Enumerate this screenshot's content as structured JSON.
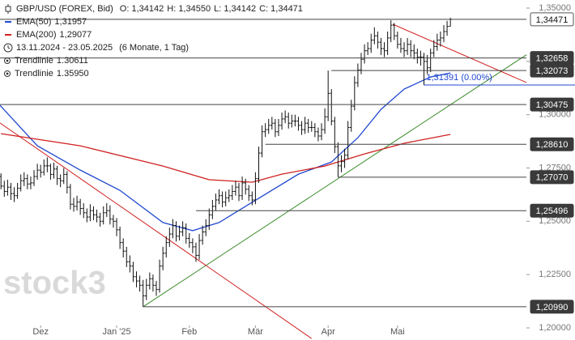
{
  "chart_data": {
    "type": "ohlc",
    "title": "GBP/USD (FOREX, Bid)",
    "quote": [
      {
        "label": "O:",
        "value": "1,34142"
      },
      {
        "label": "H:",
        "value": "1,34550"
      },
      {
        "label": "L:",
        "value": "1,34142"
      },
      {
        "label": "C:",
        "value": "1,34471"
      }
    ],
    "date_range": "13.11.2024 - 23.05.2025",
    "period": "(6 Monate, 1 Tag)",
    "watermark": "stock3",
    "color": "#111111",
    "grid": false,
    "xlim": [
      0.7,
      160
    ],
    "ylim": [
      1.2,
      1.35
    ],
    "xticks": [
      {
        "value": 13,
        "label": "Dez"
      },
      {
        "value": 36,
        "label": "Jan '25"
      },
      {
        "value": 58,
        "label": "Feb"
      },
      {
        "value": 78,
        "label": "Mär"
      },
      {
        "value": 100,
        "label": "Apr"
      },
      {
        "value": 121,
        "label": "Mai"
      }
    ],
    "yticks": [
      {
        "value": 1.35,
        "label": "1,35000"
      },
      {
        "value": 1.325,
        "label": "1,32500"
      },
      {
        "value": 1.3,
        "label": "1,30000"
      },
      {
        "value": 1.275,
        "label": "1,27500"
      },
      {
        "value": 1.25,
        "label": "1,25000"
      },
      {
        "value": 1.225,
        "label": "1,22500"
      },
      {
        "value": 1.2,
        "label": "1,20000"
      }
    ],
    "ohlc": [
      [
        1.274,
        1.2765,
        1.269,
        1.271
      ],
      [
        1.271,
        1.2725,
        1.265,
        1.2665
      ],
      [
        1.2665,
        1.269,
        1.2615,
        1.264
      ],
      [
        1.264,
        1.2695,
        1.262,
        1.266
      ],
      [
        1.266,
        1.268,
        1.26,
        1.263
      ],
      [
        1.263,
        1.266,
        1.259,
        1.262
      ],
      [
        1.262,
        1.268,
        1.2605,
        1.2655
      ],
      [
        1.2655,
        1.272,
        1.264,
        1.269
      ],
      [
        1.269,
        1.273,
        1.2665,
        1.27
      ],
      [
        1.27,
        1.272,
        1.265,
        1.2675
      ],
      [
        1.2675,
        1.271,
        1.265,
        1.268
      ],
      [
        1.268,
        1.274,
        1.2665,
        1.271
      ],
      [
        1.271,
        1.277,
        1.2695,
        1.274
      ],
      [
        1.274,
        1.2765,
        1.2705,
        1.273
      ],
      [
        1.273,
        1.279,
        1.2715,
        1.276
      ],
      [
        1.276,
        1.28,
        1.273,
        1.276
      ],
      [
        1.276,
        1.277,
        1.2695,
        1.272
      ],
      [
        1.272,
        1.2775,
        1.27,
        1.2745
      ],
      [
        1.2745,
        1.276,
        1.267,
        1.27
      ],
      [
        1.27,
        1.272,
        1.266,
        1.269
      ],
      [
        1.269,
        1.275,
        1.2675,
        1.272
      ],
      [
        1.272,
        1.2735,
        1.263,
        1.266
      ],
      [
        1.266,
        1.2675,
        1.2555,
        1.258
      ],
      [
        1.258,
        1.261,
        1.2545,
        1.257
      ],
      [
        1.257,
        1.262,
        1.255,
        1.259
      ],
      [
        1.259,
        1.2605,
        1.253,
        1.256
      ],
      [
        1.256,
        1.2585,
        1.2515,
        1.254
      ],
      [
        1.254,
        1.256,
        1.2495,
        1.252
      ],
      [
        1.252,
        1.258,
        1.25,
        1.255
      ],
      [
        1.255,
        1.257,
        1.2505,
        1.253
      ],
      [
        1.253,
        1.2555,
        1.2495,
        1.252
      ],
      [
        1.252,
        1.254,
        1.2475,
        1.25
      ],
      [
        1.25,
        1.257,
        1.2485,
        1.254
      ],
      [
        1.254,
        1.2585,
        1.252,
        1.255
      ],
      [
        1.255,
        1.2575,
        1.2485,
        1.251
      ],
      [
        1.251,
        1.253,
        1.247,
        1.25
      ],
      [
        1.25,
        1.2515,
        1.243,
        1.246
      ],
      [
        1.246,
        1.2475,
        1.237,
        1.24
      ],
      [
        1.24,
        1.242,
        1.233,
        1.236
      ],
      [
        1.236,
        1.238,
        1.2285,
        1.231
      ],
      [
        1.231,
        1.234,
        1.226,
        1.229
      ],
      [
        1.229,
        1.231,
        1.2215,
        1.224
      ],
      [
        1.224,
        1.2265,
        1.219,
        1.222
      ],
      [
        1.222,
        1.2245,
        1.217,
        1.22
      ],
      [
        1.22,
        1.2225,
        1.2099,
        1.215
      ],
      [
        1.215,
        1.223,
        1.213,
        1.22
      ],
      [
        1.22,
        1.226,
        1.218,
        1.223
      ],
      [
        1.223,
        1.225,
        1.217,
        1.22
      ],
      [
        1.22,
        1.222,
        1.215,
        1.218
      ],
      [
        1.218,
        1.232,
        1.2165,
        1.229
      ],
      [
        1.229,
        1.238,
        1.227,
        1.235
      ],
      [
        1.235,
        1.243,
        1.233,
        1.24
      ],
      [
        1.24,
        1.247,
        1.238,
        1.244
      ],
      [
        1.244,
        1.251,
        1.242,
        1.248
      ],
      [
        1.248,
        1.25,
        1.2405,
        1.243
      ],
      [
        1.243,
        1.248,
        1.241,
        1.245
      ],
      [
        1.245,
        1.25,
        1.243,
        1.247
      ],
      [
        1.247,
        1.249,
        1.2395,
        1.242
      ],
      [
        1.242,
        1.2445,
        1.2375,
        1.24
      ],
      [
        1.24,
        1.242,
        1.235,
        1.238
      ],
      [
        1.238,
        1.24,
        1.231,
        1.234
      ],
      [
        1.234,
        1.244,
        1.232,
        1.241
      ],
      [
        1.241,
        1.248,
        1.239,
        1.245
      ],
      [
        1.245,
        1.251,
        1.243,
        1.248
      ],
      [
        1.248,
        1.256,
        1.246,
        1.253
      ],
      [
        1.253,
        1.26,
        1.251,
        1.257
      ],
      [
        1.257,
        1.263,
        1.255,
        1.26
      ],
      [
        1.26,
        1.265,
        1.258,
        1.262
      ],
      [
        1.262,
        1.264,
        1.2565,
        1.259
      ],
      [
        1.259,
        1.264,
        1.257,
        1.261
      ],
      [
        1.261,
        1.265,
        1.259,
        1.262
      ],
      [
        1.262,
        1.267,
        1.26,
        1.264
      ],
      [
        1.264,
        1.269,
        1.262,
        1.266
      ],
      [
        1.266,
        1.268,
        1.2595,
        1.262
      ],
      [
        1.262,
        1.271,
        1.26,
        1.268
      ],
      [
        1.268,
        1.27,
        1.2625,
        1.265
      ],
      [
        1.265,
        1.267,
        1.2595,
        1.262
      ],
      [
        1.262,
        1.264,
        1.2575,
        1.26
      ],
      [
        1.26,
        1.273,
        1.258,
        1.27
      ],
      [
        1.27,
        1.285,
        1.268,
        1.282
      ],
      [
        1.282,
        1.295,
        1.28,
        1.292
      ],
      [
        1.292,
        1.296,
        1.2895,
        1.293
      ],
      [
        1.293,
        1.298,
        1.291,
        1.295
      ],
      [
        1.295,
        1.299,
        1.293,
        1.296
      ],
      [
        1.296,
        1.298,
        1.2895,
        1.292
      ],
      [
        1.292,
        1.298,
        1.29,
        1.295
      ],
      [
        1.295,
        1.301,
        1.293,
        1.298
      ],
      [
        1.298,
        1.302,
        1.296,
        1.299
      ],
      [
        1.299,
        1.301,
        1.2935,
        1.296
      ],
      [
        1.296,
        1.3,
        1.294,
        1.297
      ],
      [
        1.297,
        1.3,
        1.2945,
        1.297
      ],
      [
        1.297,
        1.299,
        1.2925,
        1.295
      ],
      [
        1.295,
        1.297,
        1.2905,
        1.293
      ],
      [
        1.293,
        1.299,
        1.291,
        1.296
      ],
      [
        1.296,
        1.298,
        1.2915,
        1.294
      ],
      [
        1.294,
        1.297,
        1.292,
        1.294
      ],
      [
        1.294,
        1.296,
        1.2895,
        1.292
      ],
      [
        1.292,
        1.294,
        1.2875,
        1.29
      ],
      [
        1.29,
        1.296,
        1.288,
        1.293
      ],
      [
        1.293,
        1.303,
        1.291,
        1.299
      ],
      [
        1.299,
        1.3207,
        1.297,
        1.31
      ],
      [
        1.31,
        1.312,
        1.295,
        1.297
      ],
      [
        1.297,
        1.299,
        1.282,
        1.285
      ],
      [
        1.285,
        1.287,
        1.2707,
        1.276
      ],
      [
        1.276,
        1.281,
        1.273,
        1.278
      ],
      [
        1.278,
        1.284,
        1.275,
        1.281
      ],
      [
        1.281,
        1.297,
        1.279,
        1.294
      ],
      [
        1.294,
        1.307,
        1.292,
        1.304
      ],
      [
        1.304,
        1.318,
        1.302,
        1.315
      ],
      [
        1.315,
        1.324,
        1.313,
        1.321
      ],
      [
        1.321,
        1.329,
        1.319,
        1.326
      ],
      [
        1.326,
        1.333,
        1.324,
        1.33
      ],
      [
        1.33,
        1.334,
        1.328,
        1.331
      ],
      [
        1.331,
        1.338,
        1.329,
        1.335
      ],
      [
        1.335,
        1.341,
        1.333,
        1.337
      ],
      [
        1.337,
        1.339,
        1.331,
        1.334
      ],
      [
        1.334,
        1.336,
        1.328,
        1.331
      ],
      [
        1.331,
        1.334,
        1.327,
        1.33
      ],
      [
        1.33,
        1.339,
        1.328,
        1.336
      ],
      [
        1.336,
        1.3443,
        1.334,
        1.342
      ],
      [
        1.342,
        1.343,
        1.335,
        1.337
      ],
      [
        1.337,
        1.339,
        1.331,
        1.333
      ],
      [
        1.333,
        1.336,
        1.329,
        1.331
      ],
      [
        1.331,
        1.334,
        1.327,
        1.33
      ],
      [
        1.33,
        1.336,
        1.328,
        1.333
      ],
      [
        1.333,
        1.335,
        1.327,
        1.33
      ],
      [
        1.33,
        1.333,
        1.326,
        1.329
      ],
      [
        1.329,
        1.331,
        1.324,
        1.327
      ],
      [
        1.327,
        1.33,
        1.323,
        1.327
      ],
      [
        1.327,
        1.329,
        1.3139,
        1.325
      ],
      [
        1.325,
        1.328,
        1.319,
        1.322
      ],
      [
        1.322,
        1.331,
        1.32,
        1.329
      ],
      [
        1.329,
        1.335,
        1.327,
        1.332
      ],
      [
        1.332,
        1.338,
        1.33,
        1.335
      ],
      [
        1.335,
        1.339,
        1.332,
        1.336
      ],
      [
        1.336,
        1.342,
        1.334,
        1.339
      ],
      [
        1.339,
        1.344,
        1.337,
        1.3414
      ],
      [
        1.34142,
        1.3455,
        1.34142,
        1.34471
      ]
    ],
    "series": [
      {
        "name": "EMA(50)",
        "color": "#2048d0",
        "value_label": "1,31957",
        "x": [
          0.7,
          12,
          25,
          37,
          50,
          59,
          67,
          79,
          91,
          101,
          109,
          116,
          123,
          131,
          137
        ],
        "values": [
          1.3044,
          1.2854,
          1.274,
          1.2645,
          1.2494,
          1.2456,
          1.2494,
          1.2608,
          1.2721,
          1.2778,
          1.2892,
          1.3025,
          1.312,
          1.3177,
          1.31957
        ]
      },
      {
        "name": "EMA(200)",
        "color": "#d02020",
        "value_label": "1,29077",
        "x": [
          1,
          25,
          50,
          64,
          77,
          86,
          99,
          111,
          123,
          137
        ],
        "values": [
          1.2911,
          1.2854,
          1.2759,
          1.2695,
          1.2683,
          1.2721,
          1.2759,
          1.2816,
          1.2866,
          1.29077
        ]
      }
    ],
    "trendline_legend": [
      {
        "name": "Trendlinie",
        "value": "1.30611"
      },
      {
        "name": "Trendlinie",
        "value": "1.35950"
      }
    ],
    "trendlines": [
      {
        "color": "#3a8a2a",
        "x": [
          44,
          160
        ],
        "values": [
          1.2099,
          1.3281
        ]
      },
      {
        "color": "#d02020",
        "x": [
          0.7,
          95
        ],
        "values": [
          1.2961,
          1.195
        ]
      },
      {
        "color": "#d02020",
        "x": [
          119.6,
          160
        ],
        "values": [
          1.3424,
          1.3151
        ]
      }
    ],
    "levels": [
      {
        "value": 1.34471,
        "label": "1,34471",
        "start": 0.7,
        "current": true
      },
      {
        "value": 1.32658,
        "label": "1,32658",
        "start": 0.7,
        "current": false
      },
      {
        "value": 1.32073,
        "label": "1,32073",
        "start": 101,
        "current": false
      },
      {
        "value": 1.30475,
        "label": "1,30475",
        "start": 0.7,
        "current": false
      },
      {
        "value": 1.2861,
        "label": "1,28610",
        "start": 81,
        "current": false
      },
      {
        "value": 1.2707,
        "label": "1,27070",
        "start": 103,
        "current": false
      },
      {
        "value": 1.25496,
        "label": "1,25496",
        "start": 60,
        "current": false
      },
      {
        "value": 1.2099,
        "label": "1,20990",
        "start": 44,
        "current": false
      }
    ],
    "marker": {
      "value": 1.31391,
      "label": "1,31391 (0.00%)",
      "start": 129,
      "color": "#2048d0"
    }
  }
}
